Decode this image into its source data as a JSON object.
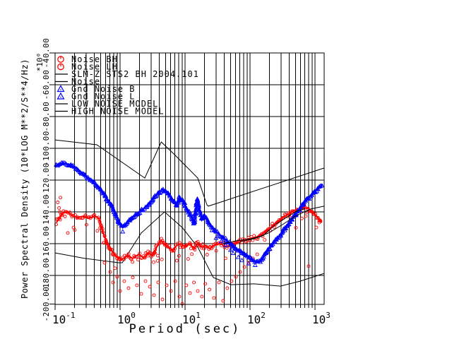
{
  "chart_data": {
    "type": "scatter",
    "xlabel": "Period (sec)",
    "ylabel": "Power Spectral Density (10*LOG M**2/S**4/Hz)",
    "y_scale_note": "*10⁰",
    "x_scale": "log",
    "grid": "full-log-grid-on",
    "legend_position": "top-left-inside",
    "xlim": [
      0.1,
      1400
    ],
    "ylim": [
      -198,
      -40
    ],
    "x_ticks": [
      {
        "base": "10",
        "exp": "-1",
        "value": 0.1
      },
      {
        "base": "10",
        "exp": "0",
        "value": 1
      },
      {
        "base": "10",
        "exp": "1",
        "value": 10
      },
      {
        "base": "10",
        "exp": "2",
        "value": 100
      },
      {
        "base": "10",
        "exp": "3",
        "value": 1000
      }
    ],
    "y_ticks": [
      {
        "value": -40,
        "label": "-40.00"
      },
      {
        "value": -60,
        "label": "-60.00"
      },
      {
        "value": -80,
        "label": "-80.00"
      },
      {
        "value": -100,
        "label": "-100.00"
      },
      {
        "value": -120,
        "label": "-120.00"
      },
      {
        "value": -140,
        "label": "-140.00"
      },
      {
        "value": -160,
        "label": "-160.00"
      },
      {
        "value": -180,
        "label": "-180.00"
      },
      {
        "value": -200,
        "label": "-200.00"
      }
    ],
    "series": [
      {
        "id": "noise_bh",
        "label": "Noise BH",
        "marker": "circle",
        "color": "#ff0000",
        "render": "scatter_band",
        "points": [
          [
            0.105,
            -146.7
          ],
          [
            0.129,
            -140.9
          ],
          [
            0.153,
            -140
          ],
          [
            0.182,
            -142.2
          ],
          [
            0.223,
            -143.6
          ],
          [
            0.272,
            -142.7
          ],
          [
            0.333,
            -144
          ],
          [
            0.407,
            -142.7
          ],
          [
            0.472,
            -144
          ],
          [
            0.549,
            -153.3
          ],
          [
            0.638,
            -160
          ],
          [
            0.741,
            -164.4
          ],
          [
            0.861,
            -167.6
          ],
          [
            1.05,
            -170.2
          ],
          [
            1.29,
            -167.6
          ],
          [
            1.57,
            -169.3
          ],
          [
            1.92,
            -166.7
          ],
          [
            2.34,
            -168.9
          ],
          [
            2.72,
            -165.8
          ],
          [
            3.17,
            -167.6
          ],
          [
            3.67,
            -162.2
          ],
          [
            4.27,
            -157.8
          ],
          [
            4.72,
            -160.4
          ],
          [
            5.48,
            -162.2
          ],
          [
            6.38,
            -164.4
          ],
          [
            7.41,
            -161.3
          ],
          [
            8.61,
            -160
          ],
          [
            10,
            -162.2
          ],
          [
            11.7,
            -160
          ],
          [
            13.7,
            -163.1
          ],
          [
            15.7,
            -160
          ],
          [
            18.2,
            -162.2
          ],
          [
            20.5,
            -161.3
          ],
          [
            23.8,
            -163.1
          ],
          [
            27.8,
            -161.3
          ],
          [
            33.3,
            -160
          ],
          [
            38.5,
            -160.9
          ],
          [
            44.7,
            -162.2
          ],
          [
            52,
            -160.4
          ],
          [
            60.7,
            -159.6
          ],
          [
            70.5,
            -158.7
          ],
          [
            82,
            -157.8
          ],
          [
            95.3,
            -156.9
          ],
          [
            111,
            -156.4
          ],
          [
            129,
            -155.6
          ],
          [
            149,
            -154.2
          ],
          [
            174,
            -152.4
          ],
          [
            203,
            -150.2
          ],
          [
            236,
            -148
          ],
          [
            274,
            -145.8
          ],
          [
            319,
            -143.6
          ],
          [
            372,
            -141.8
          ],
          [
            434,
            -140
          ],
          [
            505,
            -138.7
          ],
          [
            589,
            -137.8
          ],
          [
            686,
            -137.3
          ],
          [
            781,
            -137.8
          ],
          [
            889,
            -139.6
          ],
          [
            1012,
            -141.8
          ],
          [
            1152,
            -144.4
          ],
          [
            1278,
            -146.7
          ]
        ]
      },
      {
        "id": "noise_lh",
        "label": "Noise LH",
        "marker": "circle",
        "color": "#ff0000",
        "render": "points",
        "points": [
          [
            0.11,
            -134
          ],
          [
            0.115,
            -137.5
          ],
          [
            0.121,
            -131
          ],
          [
            0.118,
            -140
          ],
          [
            0.157,
            -153.3
          ],
          [
            0.192,
            -149.8
          ],
          [
            0.577,
            -172
          ],
          [
            0.705,
            -177.8
          ],
          [
            0.778,
            -184.4
          ],
          [
            0.902,
            -180.9
          ],
          [
            1,
            -189.8
          ],
          [
            1.16,
            -183.6
          ],
          [
            1.35,
            -188
          ],
          [
            1.57,
            -181.3
          ],
          [
            1.82,
            -186.2
          ],
          [
            2.12,
            -191.6
          ],
          [
            2.46,
            -183.6
          ],
          [
            2.86,
            -187.1
          ],
          [
            3.33,
            -192.4
          ],
          [
            3.86,
            -184.4
          ],
          [
            4.49,
            -195.1
          ],
          [
            5.22,
            -186.2
          ],
          [
            6.07,
            -189.8
          ],
          [
            7.05,
            -183.6
          ],
          [
            8.19,
            -193.3
          ],
          [
            9.05,
            -197.8
          ],
          [
            10.5,
            -186.2
          ],
          [
            11.9,
            -191.1
          ],
          [
            13.7,
            -184.4
          ],
          [
            15.7,
            -189.8
          ],
          [
            18.2,
            -193.3
          ],
          [
            20.5,
            -185.3
          ],
          [
            23.8,
            -188.9
          ],
          [
            27.8,
            -194.2
          ],
          [
            33.3,
            -184.4
          ],
          [
            38.5,
            -196
          ],
          [
            44.7,
            -188
          ],
          [
            52,
            -183.6
          ],
          [
            60.7,
            -180.9
          ],
          [
            70.5,
            -177.8
          ],
          [
            82,
            -174.7
          ],
          [
            95.3,
            -172
          ],
          [
            111,
            -169.3
          ],
          [
            129,
            -166.7
          ],
          [
            798,
            -174.2
          ],
          [
            1052,
            -149.8
          ],
          [
            723,
            -142.7
          ],
          [
            1162,
            -146.7
          ]
        ]
      },
      {
        "id": "slm_sts2",
        "label": "SLM-Z STS2 BH 2004.101",
        "marker": "line",
        "color": "#000000",
        "render": "line",
        "points": [
          [
            70.5,
            -158.7
          ],
          [
            116,
            -156.9
          ],
          [
            192,
            -153.3
          ],
          [
            316,
            -148
          ],
          [
            521,
            -142.2
          ],
          [
            861,
            -138.2
          ],
          [
            1385,
            -136.4
          ]
        ]
      },
      {
        "id": "noise_line",
        "label": "Noise",
        "marker": "line",
        "color": "#000000",
        "render": "line",
        "points": [
          [
            37.7,
            -160
          ],
          [
            62.1,
            -158.2
          ],
          [
            102,
            -156.9
          ],
          [
            157,
            -155.1
          ],
          [
            246,
            -148
          ],
          [
            358,
            -143.6
          ],
          [
            521,
            -139.6
          ],
          [
            704,
            -137.8
          ]
        ]
      },
      {
        "id": "gnd_noise_b",
        "label": "Gnd Noise B",
        "marker": "triangle",
        "color": "#0000ff",
        "render": "scatter_band",
        "points": [
          [
            0.1,
            -111.1
          ],
          [
            0.129,
            -109.3
          ],
          [
            0.165,
            -110.2
          ],
          [
            0.212,
            -112.4
          ],
          [
            0.272,
            -116.4
          ],
          [
            0.386,
            -121.3
          ],
          [
            0.535,
            -127.6
          ],
          [
            0.741,
            -136.4
          ],
          [
            1,
            -148
          ],
          [
            1.1,
            -149.8
          ],
          [
            1.32,
            -146.2
          ],
          [
            1.65,
            -142.7
          ],
          [
            2.12,
            -139.1
          ],
          [
            2.72,
            -135.6
          ],
          [
            3.49,
            -129.8
          ],
          [
            4.49,
            -125.8
          ],
          [
            5.48,
            -128.4
          ],
          [
            6.53,
            -132.9
          ],
          [
            7.41,
            -136
          ],
          [
            8.19,
            -130.7
          ],
          [
            9.27,
            -133.3
          ],
          [
            10.8,
            -138.7
          ],
          [
            12.5,
            -143.1
          ],
          [
            13.8,
            -147.6
          ],
          [
            15.3,
            -132
          ],
          [
            16.9,
            -139.6
          ],
          [
            18.2,
            -144.9
          ],
          [
            20.1,
            -142.2
          ],
          [
            22.3,
            -145.8
          ],
          [
            25.2,
            -149.3
          ],
          [
            29.3,
            -152
          ],
          [
            34.9,
            -154.7
          ],
          [
            41.7,
            -157.3
          ],
          [
            49.7,
            -160
          ],
          [
            60.7,
            -163.1
          ],
          [
            72.3,
            -165.3
          ],
          [
            86.1,
            -167.1
          ],
          [
            105,
            -170.2
          ],
          [
            125,
            -171.6
          ],
          [
            149,
            -170.7
          ],
          [
            182,
            -164.9
          ],
          [
            223,
            -160.4
          ],
          [
            272,
            -156
          ],
          [
            333,
            -151.6
          ],
          [
            406,
            -146.7
          ],
          [
            497,
            -141.8
          ],
          [
            607,
            -136.9
          ],
          [
            741,
            -132.4
          ],
          [
            883,
            -129.3
          ],
          [
            1052,
            -126.2
          ],
          [
            1222,
            -124
          ],
          [
            1318,
            -122.7
          ]
        ]
      },
      {
        "id": "gnd_noise_l",
        "label": "Gnd Noise L",
        "marker": "triangle",
        "color": "#0000ff",
        "render": "points",
        "points": [
          [
            30,
            -156.5
          ],
          [
            36,
            -158.5
          ],
          [
            42,
            -161
          ],
          [
            50,
            -164
          ],
          [
            55,
            -166
          ],
          [
            58,
            -163
          ],
          [
            66,
            -168.5
          ],
          [
            75,
            -170.5
          ],
          [
            95,
            -172.5
          ],
          [
            120,
            -173.5
          ]
        ]
      },
      {
        "id": "low_noise_model",
        "label": "LOW NOISE MODEL",
        "marker": "line",
        "color": "#000000",
        "render": "line",
        "points": [
          [
            0.1,
            -165.8
          ],
          [
            0.286,
            -169.3
          ],
          [
            0.95,
            -172
          ],
          [
            1.08,
            -172
          ],
          [
            2.12,
            -153.3
          ],
          [
            4.84,
            -140
          ],
          [
            9.05,
            -149.8
          ],
          [
            15.7,
            -162.2
          ],
          [
            27.2,
            -181.3
          ],
          [
            50.9,
            -185.8
          ],
          [
            116,
            -185.3
          ],
          [
            293,
            -186.7
          ],
          [
            591,
            -183.6
          ],
          [
            1385,
            -178.7
          ]
        ]
      },
      {
        "id": "high_noise_model",
        "label": "HIGH NOISE MODEL",
        "marker": "line",
        "color": "#000000",
        "render": "line",
        "points": [
          [
            0.1,
            -94.7
          ],
          [
            0.44,
            -97.8
          ],
          [
            2.4,
            -118.7
          ],
          [
            4.3,
            -96
          ],
          [
            6.9,
            -104
          ],
          [
            15.7,
            -118.7
          ],
          [
            21.7,
            -135.6
          ],
          [
            22.9,
            -136.4
          ],
          [
            1385,
            -112.4
          ]
        ]
      }
    ]
  },
  "legend": {
    "items": [
      {
        "label": "Noise BH",
        "marker": "circle",
        "color": "#ff0000"
      },
      {
        "label": "Noise LH",
        "marker": "circle",
        "color": "#ff0000"
      },
      {
        "label": "SLM-Z STS2 BH 2004.101",
        "marker": "line",
        "color": "#000000"
      },
      {
        "label": "Noise",
        "marker": "line",
        "color": "#000000"
      },
      {
        "label": "Gnd Noise B",
        "marker": "triangle",
        "color": "#0000ff"
      },
      {
        "label": "Gnd Noise L",
        "marker": "triangle",
        "color": "#0000ff"
      },
      {
        "label": "LOW NOISE MODEL",
        "marker": "line",
        "color": "#000000"
      },
      {
        "label": "HIGH NOISE MODEL",
        "marker": "line",
        "color": "#000000"
      }
    ]
  },
  "colors": {
    "red": "#ff0000",
    "blue": "#0000ff",
    "black": "#000000",
    "background": "#ffffff"
  }
}
